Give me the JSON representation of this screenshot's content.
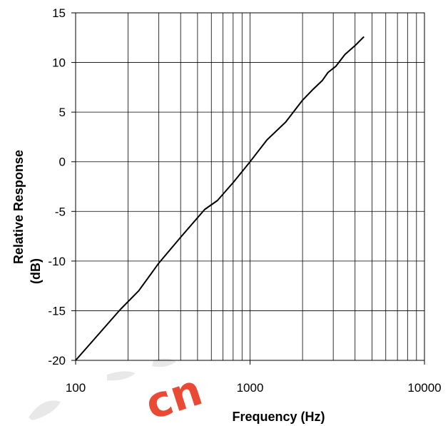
{
  "watermark": {
    "text": "cn",
    "color": "#e8371f"
  },
  "chart_data": {
    "type": "line",
    "title": "",
    "xlabel": "Frequency (Hz)",
    "ylabel_lines": [
      "Relative Response",
      "(dB)"
    ],
    "xscale": "log",
    "xlim": [
      100,
      10000
    ],
    "ylim": [
      -20,
      15
    ],
    "grid": true,
    "x_ticks": [
      100,
      1000,
      10000
    ],
    "x_tick_labels": [
      "100",
      "1000",
      "10000"
    ],
    "y_ticks": [
      -20,
      -15,
      -10,
      -5,
      0,
      5,
      10,
      15
    ],
    "y_tick_labels": [
      "-20",
      "-15",
      "-10",
      "-5",
      "0",
      "5",
      "10",
      "15"
    ],
    "x_minor_grid": [
      200,
      300,
      400,
      500,
      600,
      700,
      800,
      900,
      2000,
      3000,
      4000,
      5000,
      6000,
      7000,
      8000,
      9000
    ],
    "series": [
      {
        "color": "#000000",
        "x": [
          100,
          180,
          230,
          300,
          400,
          550,
          650,
          800,
          1000,
          1250,
          1600,
          2000,
          2300,
          2600,
          2800,
          3100,
          3500,
          4000,
          4500
        ],
        "y": [
          -20,
          -14.9,
          -13,
          -10.2,
          -7.6,
          -4.8,
          -3.9,
          -2.1,
          0,
          2.2,
          4,
          6.2,
          7.3,
          8.2,
          9,
          9.6,
          10.8,
          11.7,
          12.6
        ]
      }
    ]
  }
}
